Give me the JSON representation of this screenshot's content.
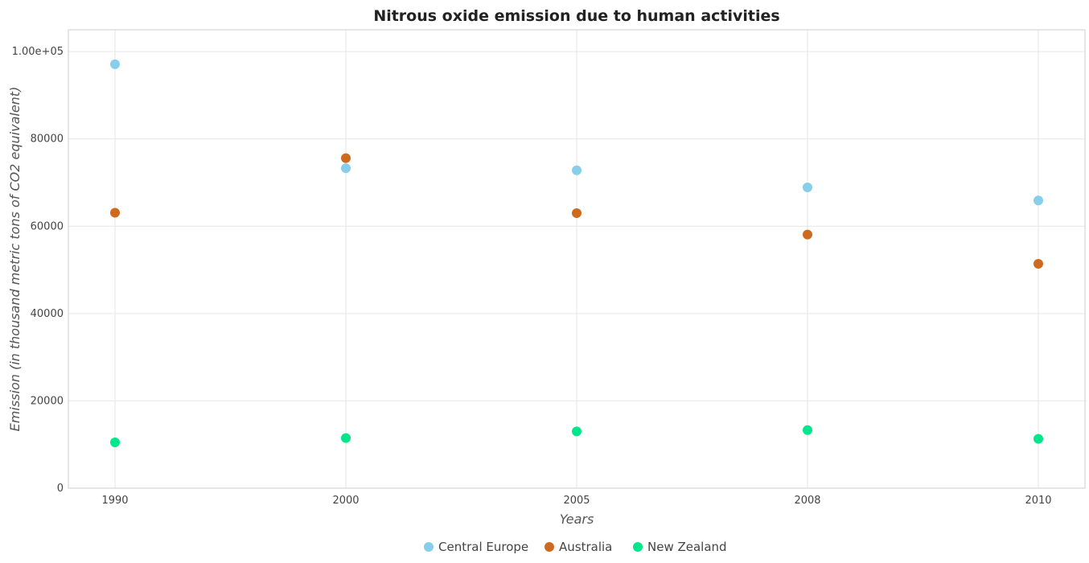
{
  "chart_data": {
    "type": "scatter",
    "title": "Nitrous oxide emission due to human activities",
    "xlabel": "Years",
    "ylabel": "Emission (in thousand metric tons of CO2 equivalent)",
    "categories": [
      "1990",
      "2000",
      "2005",
      "2008",
      "2010"
    ],
    "ylim": [
      0,
      105000
    ],
    "yticks": [
      0,
      20000,
      40000,
      60000,
      80000,
      100000
    ],
    "ytick_labels": [
      "0",
      "20000",
      "40000",
      "60000",
      "80000",
      "1.00e+05"
    ],
    "grid": true,
    "legend_position": "bottom-center",
    "series": [
      {
        "name": "Central Europe",
        "color": "#87ceeb",
        "values": [
          97100,
          73300,
          72800,
          68900,
          65900
        ]
      },
      {
        "name": "Australia",
        "color": "#cd6a1e",
        "values": [
          63100,
          75600,
          63000,
          58100,
          51400
        ]
      },
      {
        "name": "New Zealand",
        "color": "#00e68a",
        "values": [
          10500,
          11500,
          13000,
          13300,
          11300
        ]
      }
    ]
  }
}
